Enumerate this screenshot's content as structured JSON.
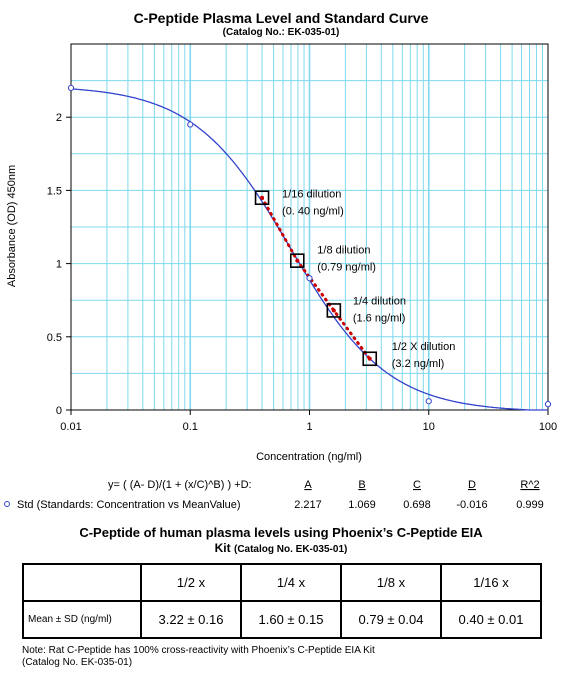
{
  "chart_data": {
    "type": "scatter",
    "title": "C-Peptide Plasma Level and Standard Curve",
    "subtitle": "(Catalog No.: EK-035-01)",
    "xlabel": "Concentration (ng/ml)",
    "ylabel": "Absorbance (OD) 450nm",
    "xscale": "log",
    "xlim": [
      0.01,
      100
    ],
    "ylim": [
      0,
      2.5
    ],
    "x_ticks": [
      "0.01",
      "0.1",
      "1",
      "10",
      "100"
    ],
    "y_ticks": [
      "0",
      "0.5",
      "1",
      "1.5",
      "2"
    ],
    "grid": true,
    "curve_params": {
      "A": 2.217,
      "B": 1.069,
      "C": 0.698,
      "D": -0.016
    },
    "series": [
      {
        "name": "Std (Standards: Concentration vs MeanValue)",
        "color": "#3344cc",
        "x": [
          0.01,
          0.1,
          1,
          10,
          100
        ],
        "y": [
          2.2,
          1.95,
          0.9,
          0.06,
          0.04
        ]
      },
      {
        "color": "#cc0000",
        "x": [
          0.4,
          0.79,
          1.6,
          3.2
        ],
        "y": [
          1.45,
          1.02,
          0.68,
          0.35
        ]
      }
    ],
    "annotations": [
      {
        "line1": "1/16  dilution",
        "line2": "(0. 40 ng/ml)"
      },
      {
        "line1": "1/8  dilution",
        "line2": "(0.79 ng/ml)"
      },
      {
        "line1": "1/4  dilution",
        "line2": "(1.6 ng/ml)"
      },
      {
        "line1": "1/2 X dilution",
        "line2": "(3.2 ng/ml)"
      }
    ],
    "equation": {
      "formula": "y= ( (A- D)/(1 + (x/C)^B) ) +D:",
      "headers": [
        "A",
        "B",
        "C",
        "D",
        "R^2"
      ],
      "row_label": "Std (Standards: Concentration vs MeanValue)",
      "values": [
        "2.217",
        "1.069",
        "0.698",
        "-0.016",
        "0.999"
      ]
    }
  },
  "table": {
    "title": "C-Peptide of human plasma levels using Phoenix’s C-Peptide EIA",
    "subtitle_main": "Kit",
    "subtitle_small": "(Catalog No. EK-035-01)",
    "columns": [
      "1/2 x",
      "1/4 x",
      "1/8 x",
      "1/16 x"
    ],
    "row_label": "Mean ± SD (ng/ml)",
    "values": [
      "3.22 ± 0.16",
      "1.60 ± 0.15",
      "0.79 ± 0.04",
      "0.40 ± 0.01"
    ]
  },
  "note": {
    "line1": "Note: Rat C-Peptide has 100% cross-reactivity with Phoenix’s C-Peptide EIA Kit",
    "line2": "(Catalog No. EK-035-01)"
  }
}
